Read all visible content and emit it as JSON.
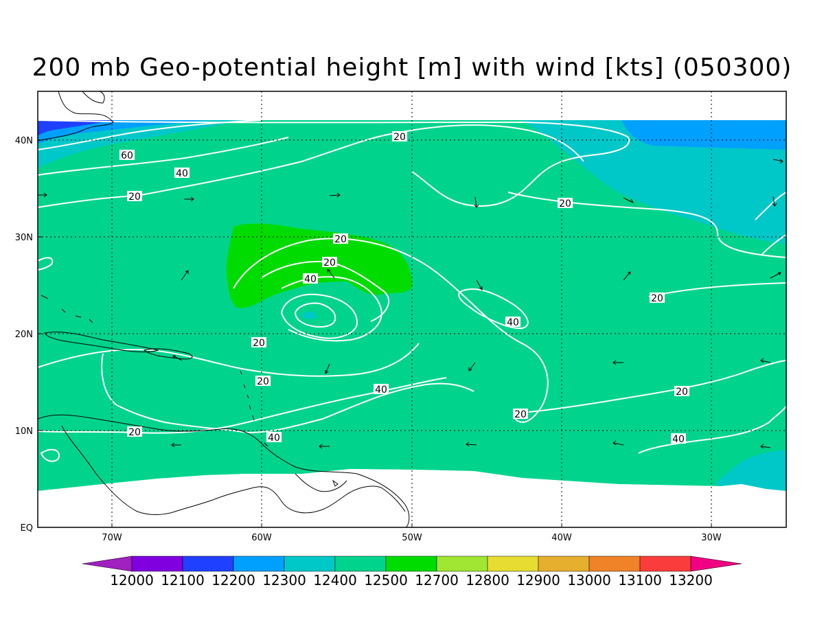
{
  "title": "200 mb Geo-potential height [m] with wind [kts] (050300)",
  "axes": {
    "lon_labels": [
      "70W",
      "60W",
      "50W",
      "40W",
      "30W"
    ],
    "lat_labels": [
      "40N",
      "30N",
      "20N",
      "10N",
      "EQ"
    ]
  },
  "contour_labels": [
    "60",
    "40",
    "20",
    "20",
    "20",
    "20",
    "40",
    "20",
    "20",
    "40",
    "40",
    "20",
    "20",
    "20",
    "20",
    "40",
    "20",
    "40"
  ],
  "colorbar": {
    "labels": [
      "12000",
      "12100",
      "12200",
      "12300",
      "12400",
      "12500",
      "12700",
      "12800",
      "12900",
      "13000",
      "13100",
      "13200"
    ],
    "colors": [
      "#a020c0",
      "#8000e0",
      "#2040ff",
      "#00a0ff",
      "#00c8c8",
      "#00d48c",
      "#00dc00",
      "#a0e632",
      "#e6dc32",
      "#e6af2d",
      "#f08228",
      "#fa3c3c",
      "#f00082"
    ]
  },
  "fill_colors": {
    "level_12200": "#2040ff",
    "level_12300": "#00a0ff",
    "level_12400": "#00c8c8",
    "level_12500": "#00d48c",
    "level_12700": "#00dc00"
  }
}
